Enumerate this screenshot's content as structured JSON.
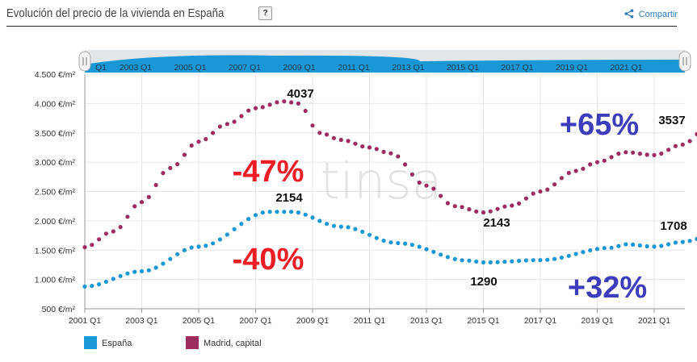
{
  "header": {
    "title": "Evolución del precio de la vivienda en España",
    "help_label": "?",
    "share_label": "Compartir"
  },
  "watermark": "tinsa",
  "navigator": {
    "labels": [
      "2003 Q1",
      "2005 Q1",
      "2007 Q1",
      "2009 Q1",
      "2011 Q1",
      "2013 Q1",
      "2015 Q1",
      "2017 Q1",
      "2019 Q1",
      "2021 Q1"
    ],
    "left_partial": "Q1"
  },
  "annotations": [
    {
      "text": "4037",
      "color": "#111111",
      "size": 15
    },
    {
      "text": "-47%",
      "color": "#ee1c25",
      "size": 38
    },
    {
      "text": "+65%",
      "color": "#3d3dbb",
      "size": 38
    },
    {
      "text": "3537",
      "color": "#111111",
      "size": 15
    },
    {
      "text": "2154",
      "color": "#111111",
      "size": 15
    },
    {
      "text": "2143",
      "color": "#111111",
      "size": 15
    },
    {
      "text": "1708",
      "color": "#111111",
      "size": 15
    },
    {
      "text": "-40%",
      "color": "#ee1c25",
      "size": 38
    },
    {
      "text": "1290",
      "color": "#111111",
      "size": 15
    },
    {
      "text": "+32%",
      "color": "#3d3dbb",
      "size": 38
    }
  ],
  "chart_data": {
    "type": "line",
    "title": "Evolución del precio de la vivienda en España",
    "x_start": 2001,
    "quarters_per_year": 4,
    "ylim": [
      500,
      4500
    ],
    "yticks": [
      500,
      1000,
      1500,
      2000,
      2500,
      3000,
      3500,
      4000,
      4500
    ],
    "ytick_labels": [
      "500 €/m²",
      "1.000 €/m²",
      "1.500 €/m²",
      "2.000 €/m²",
      "2.500 €/m²",
      "3.000 €/m²",
      "3.500 €/m²",
      "4.000 €/m²",
      "4.500 €/m²"
    ],
    "xtick_labels": [
      "2001 Q1",
      "2003 Q1",
      "2005 Q1",
      "2007 Q1",
      "2009 Q1",
      "2011 Q1",
      "2013 Q1",
      "2015 Q1",
      "2017 Q1",
      "2019 Q1",
      "2021 Q1"
    ],
    "grid": true,
    "legend_position": "bottom-left",
    "series": [
      {
        "name": "España",
        "color": "#1a98d5",
        "anchors": [
          [
            2001.0,
            880
          ],
          [
            2003.0,
            1140
          ],
          [
            2005.0,
            1560
          ],
          [
            2007.5,
            2154
          ],
          [
            2008.25,
            2154
          ],
          [
            2010.0,
            1900
          ],
          [
            2012.0,
            1620
          ],
          [
            2014.5,
            1320
          ],
          [
            2015.0,
            1290
          ],
          [
            2017.0,
            1330
          ],
          [
            2019.5,
            1540
          ],
          [
            2020.0,
            1600
          ],
          [
            2021.0,
            1560
          ],
          [
            2022.0,
            1640
          ],
          [
            2022.75,
            1708
          ]
        ]
      },
      {
        "name": "Madrid, capital",
        "color": "#9c2c5e",
        "anchors": [
          [
            2001.0,
            1550
          ],
          [
            2002.0,
            1820
          ],
          [
            2003.0,
            2320
          ],
          [
            2004.0,
            2900
          ],
          [
            2005.0,
            3350
          ],
          [
            2006.0,
            3650
          ],
          [
            2007.0,
            3920
          ],
          [
            2008.0,
            4037
          ],
          [
            2008.5,
            4000
          ],
          [
            2009.25,
            3500
          ],
          [
            2010.0,
            3380
          ],
          [
            2011.0,
            3250
          ],
          [
            2011.75,
            3150
          ],
          [
            2013.0,
            2600
          ],
          [
            2014.0,
            2250
          ],
          [
            2015.0,
            2143
          ],
          [
            2016.0,
            2260
          ],
          [
            2017.0,
            2500
          ],
          [
            2018.25,
            2850
          ],
          [
            2019.0,
            3000
          ],
          [
            2020.0,
            3170
          ],
          [
            2021.0,
            3120
          ],
          [
            2022.0,
            3300
          ],
          [
            2022.75,
            3537
          ]
        ]
      }
    ]
  }
}
